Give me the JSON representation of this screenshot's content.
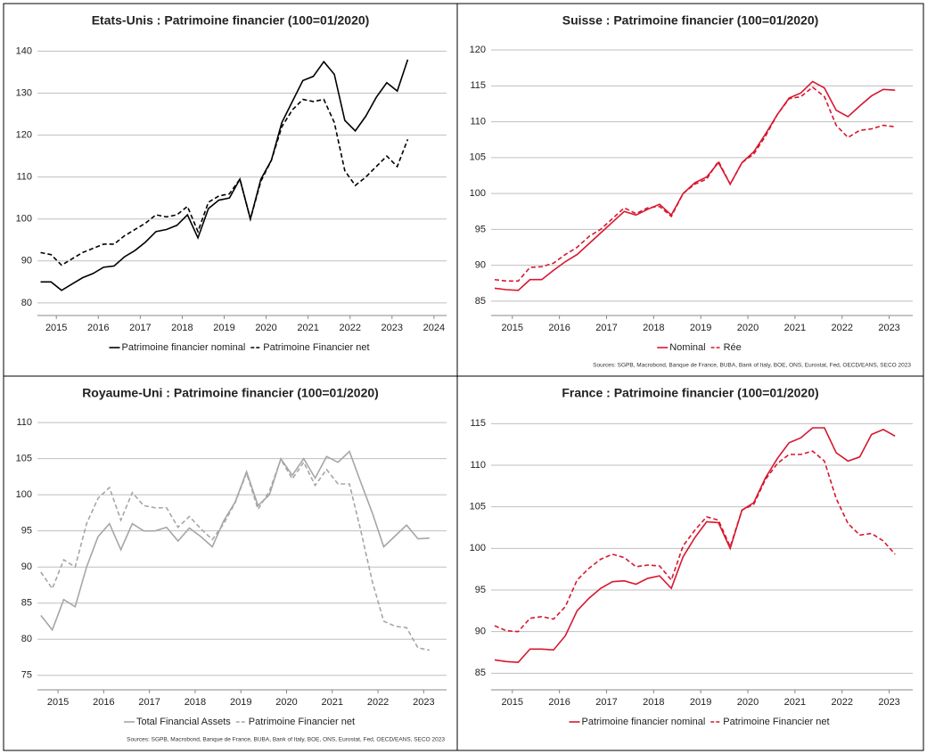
{
  "chart_data": [
    {
      "type": "line",
      "title": "Etats-Unis : Patrimoine financier (100=01/2020)",
      "x": [
        2014.625,
        2014.875,
        2015.125,
        2015.375,
        2015.625,
        2015.875,
        2016.125,
        2016.375,
        2016.625,
        2016.875,
        2017.125,
        2017.375,
        2017.625,
        2017.875,
        2018.125,
        2018.375,
        2018.625,
        2018.875,
        2019.125,
        2019.375,
        2019.625,
        2019.875,
        2020.125,
        2020.375,
        2020.625,
        2020.875,
        2021.125,
        2021.375,
        2021.625,
        2021.875,
        2022.125,
        2022.375,
        2022.625,
        2022.875,
        2023.125,
        2023.375
      ],
      "series": [
        {
          "name": "Patrimoine financier nominal",
          "color": "#000000",
          "style": "solid",
          "values": [
            85,
            85,
            83,
            84.5,
            86,
            87,
            88.5,
            88.8,
            91,
            92.5,
            94.5,
            97,
            97.5,
            98.5,
            101,
            95.5,
            102.5,
            104.5,
            105,
            109.5,
            100,
            109.5,
            114,
            123,
            128,
            133,
            134,
            137.5,
            134.5,
            123.5,
            121,
            124.5,
            129,
            132.5,
            130.5,
            138
          ]
        },
        {
          "name": "Patrimoine Financier net",
          "color": "#000000",
          "style": "dashed",
          "values": [
            92,
            91.5,
            89,
            90.5,
            92,
            93,
            94,
            94,
            96,
            97.5,
            99,
            101,
            100.5,
            101,
            103,
            97,
            104,
            105.5,
            106,
            109.5,
            100,
            109,
            114,
            122,
            126,
            128.5,
            128,
            128.5,
            123,
            111.5,
            108,
            110,
            112.5,
            115,
            112.5,
            119
          ]
        }
      ],
      "xlim": [
        2014.55,
        2024.3
      ],
      "xticks": [
        2015,
        2016,
        2017,
        2018,
        2019,
        2020,
        2021,
        2022,
        2023,
        2024
      ],
      "ylim": [
        77,
        142
      ],
      "yticks": [
        80,
        90,
        100,
        110,
        120,
        130,
        140
      ],
      "grid": true
    },
    {
      "type": "line",
      "title": "Suisse : Patrimoine financier (100=01/2020)",
      "x": [
        2014.625,
        2014.875,
        2015.125,
        2015.375,
        2015.625,
        2015.875,
        2016.125,
        2016.375,
        2016.625,
        2016.875,
        2017.125,
        2017.375,
        2017.625,
        2017.875,
        2018.125,
        2018.375,
        2018.625,
        2018.875,
        2019.125,
        2019.375,
        2019.625,
        2019.875,
        2020.125,
        2020.375,
        2020.625,
        2020.875,
        2021.125,
        2021.375,
        2021.625,
        2021.875,
        2022.125,
        2022.375,
        2022.625,
        2022.875,
        2023.125
      ],
      "series": [
        {
          "name": "Nominal",
          "color": "#d7172f",
          "style": "solid",
          "values": [
            86.8,
            86.6,
            86.5,
            88,
            88,
            89.3,
            90.5,
            91.5,
            93,
            94.5,
            96,
            97.5,
            97,
            97.8,
            98.5,
            97,
            100,
            101.5,
            102.3,
            104.3,
            101.3,
            104.3,
            105.8,
            108.3,
            111,
            113.3,
            114,
            115.6,
            114.7,
            111.6,
            110.7,
            112.2,
            113.6,
            114.5,
            114.4
          ]
        },
        {
          "name": "Rée",
          "color": "#d7172f",
          "style": "dashed",
          "values": [
            88,
            87.8,
            87.8,
            89.7,
            89.8,
            90.3,
            91.5,
            92.5,
            94,
            95,
            96.5,
            98,
            97.2,
            98,
            98.2,
            96.8,
            100,
            101.3,
            102,
            104.5,
            101.3,
            104.3,
            105.5,
            108,
            111,
            113.2,
            113.5,
            114.8,
            113.5,
            109.5,
            107.8,
            108.8,
            109,
            109.5,
            109.3
          ]
        }
      ],
      "xlim": [
        2014.55,
        2023.5
      ],
      "xticks": [
        2015,
        2016,
        2017,
        2018,
        2019,
        2020,
        2021,
        2022,
        2023
      ],
      "ylim": [
        83,
        121
      ],
      "yticks": [
        85,
        90,
        95,
        100,
        105,
        110,
        115,
        120
      ],
      "grid": true,
      "source": "Sources: SGPB, Macrobond, Banque de France, BUBA, Bank of Italy, BOE, ONS, Eurostat, Fed, OECD/EANS, SECO 2023"
    },
    {
      "type": "line",
      "title": "Royaume-Uni : Patrimoine financier (100=01/2020)",
      "x": [
        2014.625,
        2014.875,
        2015.125,
        2015.375,
        2015.625,
        2015.875,
        2016.125,
        2016.375,
        2016.625,
        2016.875,
        2017.125,
        2017.375,
        2017.625,
        2017.875,
        2018.125,
        2018.375,
        2018.625,
        2018.875,
        2019.125,
        2019.375,
        2019.625,
        2019.875,
        2020.125,
        2020.375,
        2020.625,
        2020.875,
        2021.125,
        2021.375,
        2021.625,
        2021.875,
        2022.125,
        2022.375,
        2022.625,
        2022.875,
        2023.125
      ],
      "series": [
        {
          "name": "Total Financial Assets",
          "color": "#a6a6a6",
          "style": "solid",
          "values": [
            83.3,
            81.3,
            85.5,
            84.5,
            90,
            94.2,
            96,
            92.4,
            96,
            95,
            95,
            95.5,
            93.6,
            95.4,
            94.2,
            92.8,
            96.4,
            99,
            103.2,
            98.5,
            100,
            105,
            102.7,
            105,
            102.3,
            105.3,
            104.5,
            106,
            101.7,
            97.5,
            92.8,
            94.3,
            95.8,
            93.9,
            94
          ]
        },
        {
          "name": "Patrimoine Financier net",
          "color": "#a6a6a6",
          "style": "dashed",
          "values": [
            89.3,
            87,
            91,
            90,
            96,
            99.5,
            101,
            96.5,
            100.3,
            98.5,
            98.2,
            98.2,
            95.5,
            97,
            95.3,
            93.8,
            96,
            98.9,
            103,
            98,
            100.5,
            104.9,
            102.2,
            104.5,
            101.3,
            103.5,
            101.5,
            101.5,
            95,
            88,
            82.5,
            81.8,
            81.6,
            78.8,
            78.5
          ]
        }
      ],
      "xlim": [
        2014.55,
        2023.5
      ],
      "xticks": [
        2015,
        2016,
        2017,
        2018,
        2019,
        2020,
        2021,
        2022,
        2023
      ],
      "ylim": [
        73,
        111
      ],
      "yticks": [
        75,
        80,
        85,
        90,
        95,
        100,
        105,
        110
      ],
      "grid": true,
      "source": "Sources: SGPB, Macrobond, Banque de France, BUBA, Bank of Italy, BOE, ONS, Eurostat, Fed, OECD/EANS, SECO 2023"
    },
    {
      "type": "line",
      "title": "France : Patrimoine financier (100=01/2020)",
      "x": [
        2014.625,
        2014.875,
        2015.125,
        2015.375,
        2015.625,
        2015.875,
        2016.125,
        2016.375,
        2016.625,
        2016.875,
        2017.125,
        2017.375,
        2017.625,
        2017.875,
        2018.125,
        2018.375,
        2018.625,
        2018.875,
        2019.125,
        2019.375,
        2019.625,
        2019.875,
        2020.125,
        2020.375,
        2020.625,
        2020.875,
        2021.125,
        2021.375,
        2021.625,
        2021.875,
        2022.125,
        2022.375,
        2022.625,
        2022.875,
        2023.125
      ],
      "series": [
        {
          "name": "Patrimoine financier nominal",
          "color": "#d7172f",
          "style": "solid",
          "values": [
            86.6,
            86.4,
            86.3,
            87.9,
            87.9,
            87.8,
            89.5,
            92.5,
            94,
            95.2,
            96,
            96.1,
            95.7,
            96.4,
            96.7,
            95.2,
            99,
            101.3,
            103.2,
            103.1,
            100,
            104.6,
            105.5,
            108.5,
            110.8,
            112.7,
            113.3,
            114.5,
            114.5,
            111.5,
            110.5,
            111,
            113.7,
            114.3,
            113.5
          ]
        },
        {
          "name": "Patrimoine Financier net",
          "color": "#d7172f",
          "style": "dashed",
          "values": [
            90.7,
            90.1,
            90,
            91.6,
            91.8,
            91.5,
            93,
            96.2,
            97.6,
            98.7,
            99.3,
            98.9,
            97.8,
            98,
            97.9,
            96.2,
            100.3,
            102.2,
            103.8,
            103.4,
            100.2,
            104.6,
            105.3,
            108.3,
            110.2,
            111.3,
            111.3,
            111.7,
            110.5,
            106,
            103,
            101.6,
            101.8,
            100.9,
            99.3
          ]
        }
      ],
      "xlim": [
        2014.55,
        2023.5
      ],
      "xticks": [
        2015,
        2016,
        2017,
        2018,
        2019,
        2020,
        2021,
        2022,
        2023
      ],
      "ylim": [
        83,
        116
      ],
      "yticks": [
        85,
        90,
        95,
        100,
        105,
        110,
        115
      ],
      "grid": true
    }
  ]
}
